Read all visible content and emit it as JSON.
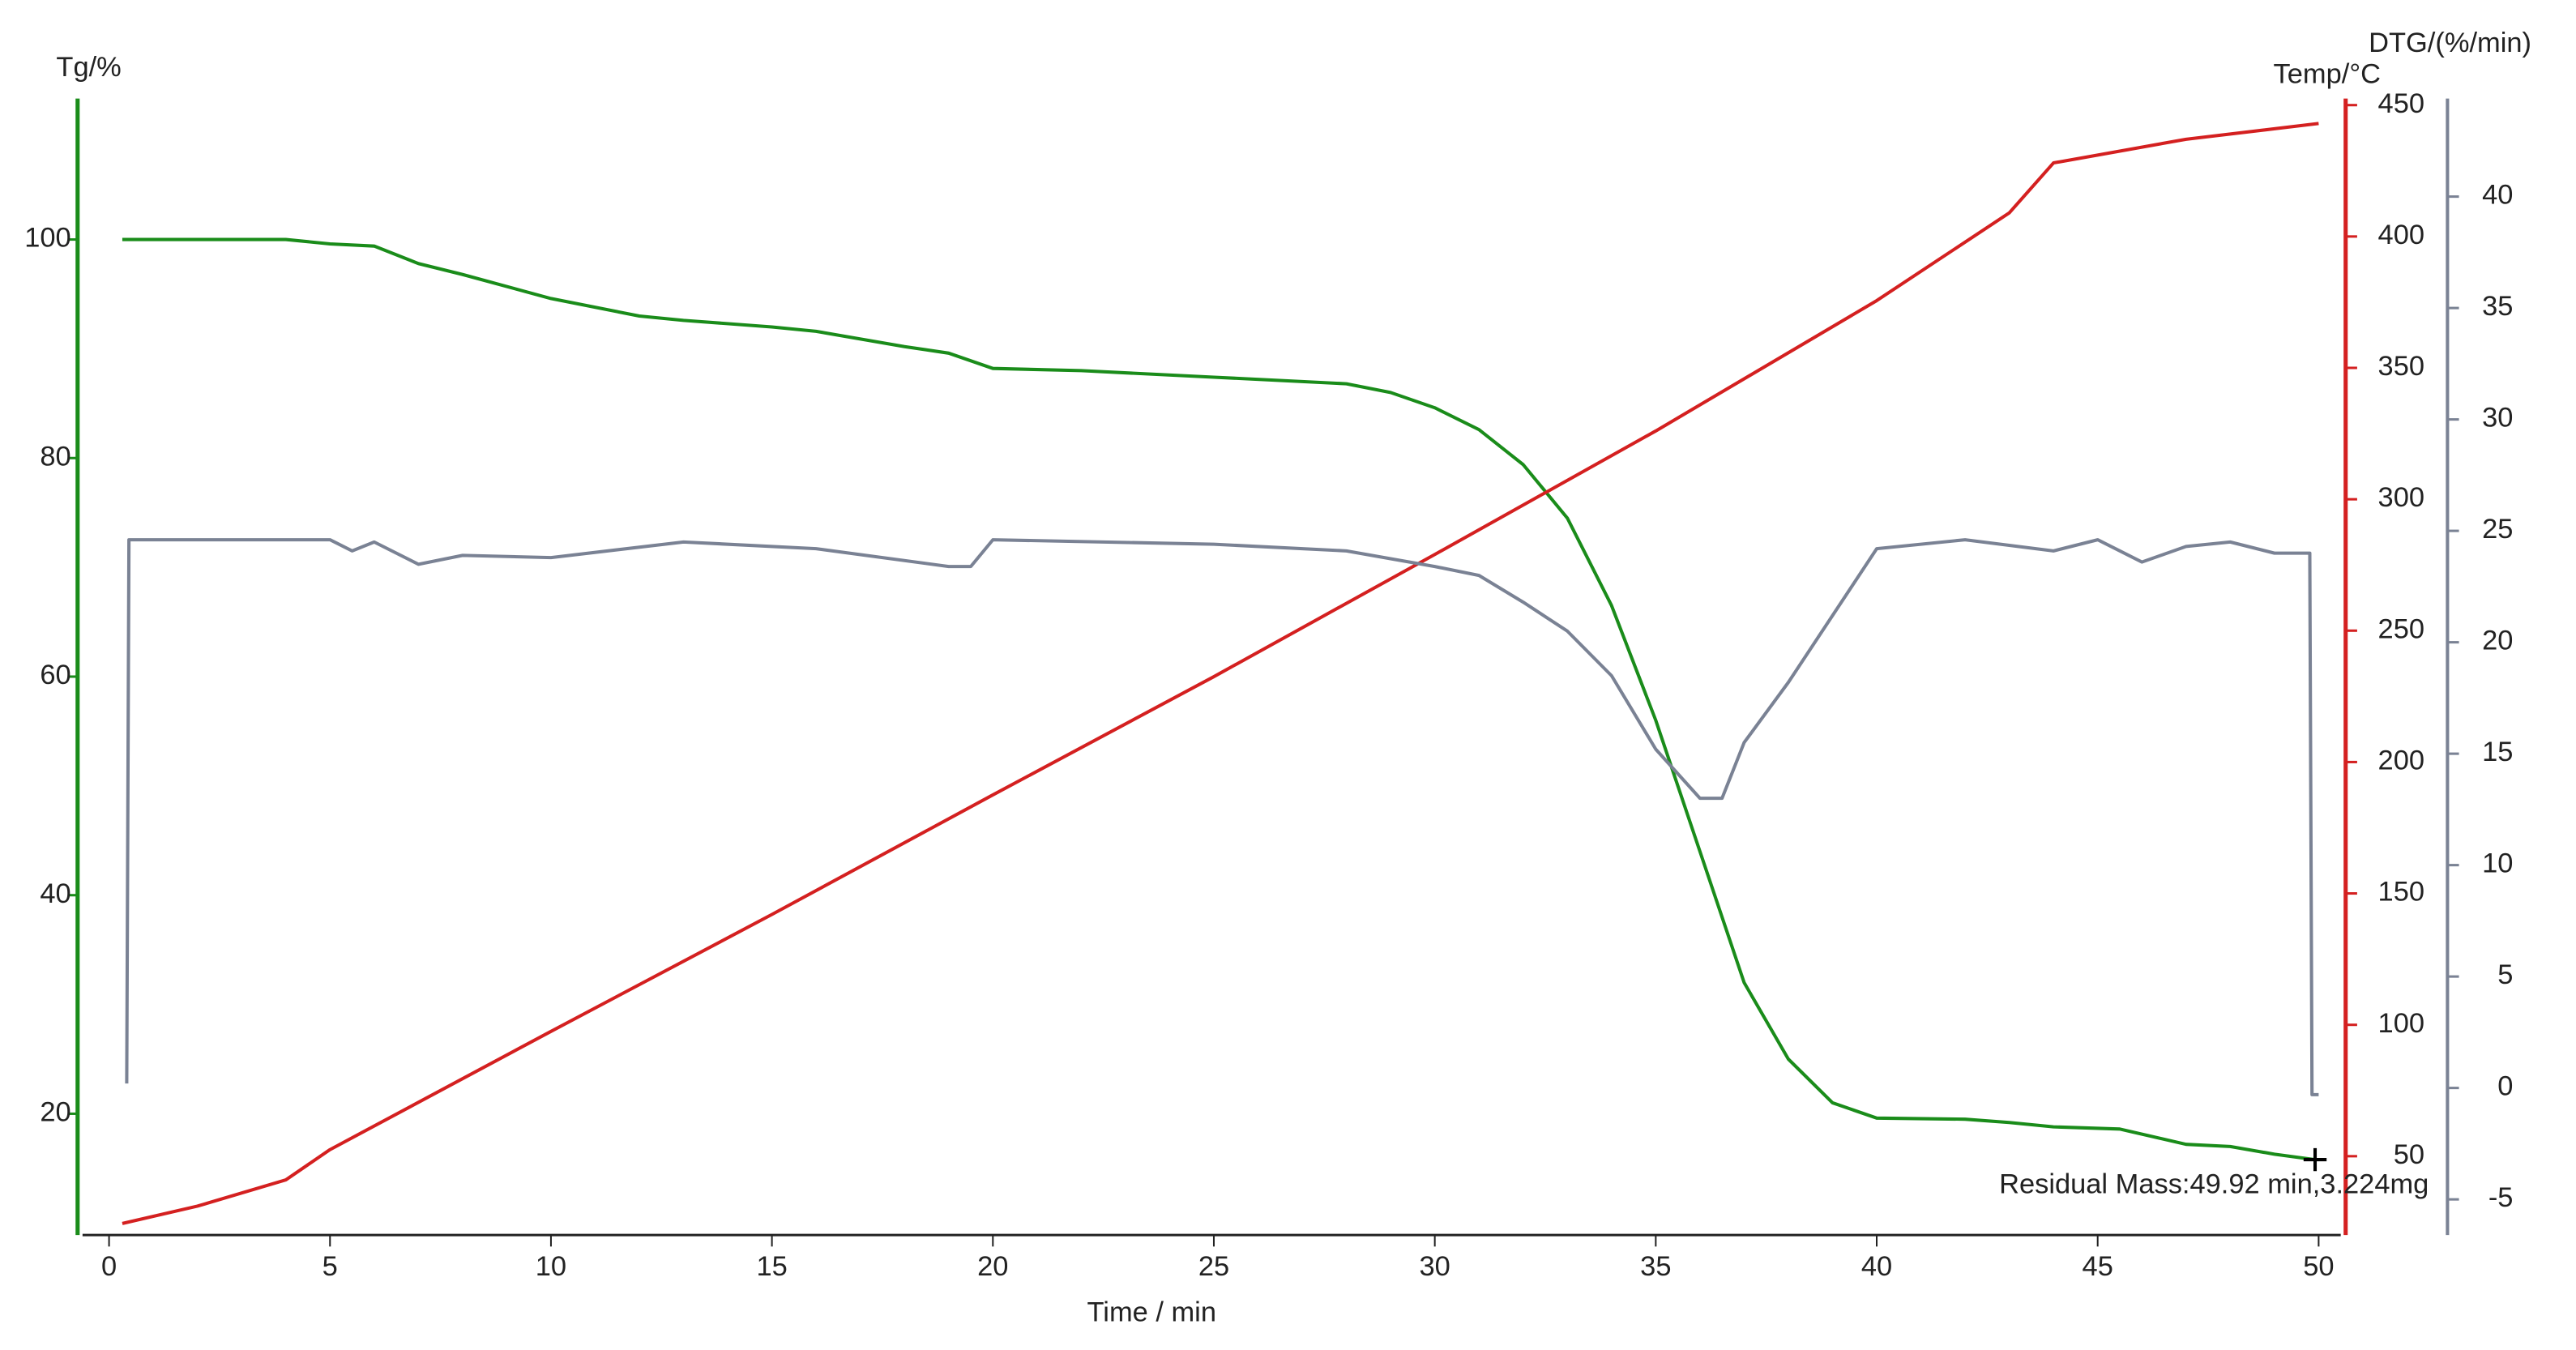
{
  "chart_data": {
    "type": "line",
    "x_label": "Time / min",
    "y_label": "Tg/%",
    "y2_label": "Temp/°C",
    "y3_label": "DTG/(%/min)",
    "annotation": "Residual Mass:49.92 min,3.224mg",
    "xlim": [
      -0.6,
      50.5
    ],
    "xticks": [
      0,
      5,
      10,
      15,
      20,
      25,
      30,
      35,
      40,
      45,
      50
    ],
    "ylim": [
      8.9,
      112.9
    ],
    "yticks": [
      20,
      40,
      60,
      80,
      100
    ],
    "y2lim": [
      20,
      452.5
    ],
    "y2ticks": [
      50,
      100,
      150,
      200,
      250,
      300,
      350,
      400,
      450
    ],
    "y3lim": [
      -6.6,
      44.4
    ],
    "y3ticks": [
      -5,
      0,
      5,
      10,
      15,
      20,
      25,
      30,
      35,
      40
    ],
    "axis_colors": {
      "y": "#1a8c1a",
      "y2": "#d42020",
      "y3": "#7a8294"
    },
    "series": [
      {
        "name": "Tg",
        "color": "#1a8c1a",
        "axis": "y",
        "x": [
          0.3,
          4,
          5,
          6,
          7,
          8,
          10,
          12,
          13,
          15,
          16,
          18,
          19,
          20,
          22,
          25,
          27,
          28,
          29,
          30,
          31,
          32,
          33,
          34,
          35,
          36,
          37,
          38,
          39,
          40,
          42,
          43,
          44,
          45.5,
          47,
          48,
          49,
          49.92
        ],
        "values": [
          100,
          100,
          99.6,
          99.4,
          97.8,
          96.8,
          94.6,
          93,
          92.6,
          92,
          91.6,
          90.2,
          89.6,
          88.2,
          88,
          87.4,
          87,
          86.8,
          86,
          84.6,
          82.6,
          79.4,
          74.5,
          66.5,
          56,
          44,
          32,
          25,
          21,
          19.6,
          19.5,
          19.2,
          18.8,
          18.6,
          17.2,
          17,
          16.3,
          15.8
        ]
      },
      {
        "name": "Temp",
        "color": "#d42020",
        "axis": "y2",
        "x": [
          0.3,
          2,
          4,
          5,
          10,
          15,
          20,
          25,
          30,
          35,
          40,
          43,
          44,
          45,
          47,
          50
        ],
        "values": [
          24.4,
          31,
          41,
          52.5,
          97.5,
          142,
          187.5,
          232.5,
          279,
          326,
          375.6,
          409,
          428,
          431,
          437,
          443
        ]
      },
      {
        "name": "DTG",
        "color": "#7a8294",
        "axis": "y3",
        "x": [
          0.4,
          0.45,
          5,
          5.5,
          6,
          7,
          8,
          10,
          13,
          16,
          19,
          19.5,
          20,
          25,
          28,
          30,
          31,
          32,
          33,
          34,
          35,
          36,
          36.5,
          37,
          38,
          39,
          40,
          42,
          44,
          45,
          46,
          47,
          48,
          49,
          49.8,
          49.85,
          50
        ],
        "values": [
          0.2,
          24.6,
          24.6,
          24.1,
          24.5,
          23.5,
          23.9,
          23.8,
          24.5,
          24.2,
          23.4,
          23.4,
          24.6,
          24.4,
          24.1,
          23.4,
          23.0,
          21.8,
          20.5,
          18.5,
          15.2,
          13.0,
          13.0,
          15.5,
          18.2,
          21.2,
          24.2,
          24.6,
          24.1,
          24.6,
          23.6,
          24.3,
          24.5,
          24.0,
          24.0,
          -0.3,
          -0.3
        ]
      }
    ]
  }
}
